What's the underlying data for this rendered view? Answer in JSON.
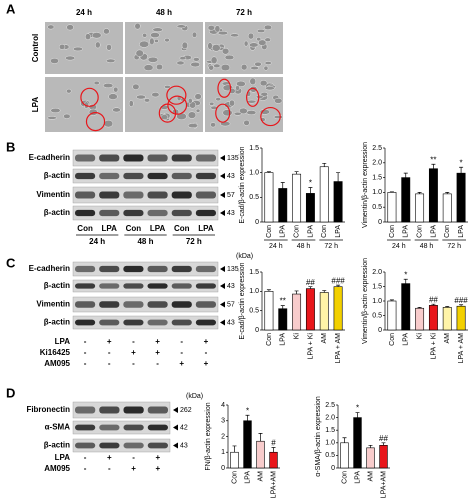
{
  "panel_a": {
    "label": "A",
    "columns": [
      "24 h",
      "48 h",
      "72 h"
    ],
    "rows": [
      "Control",
      "LPA"
    ]
  },
  "panel_b": {
    "label": "B",
    "blots": [
      {
        "name": "E-cadherin",
        "size": "135"
      },
      {
        "name": "β-actin",
        "size": "43"
      },
      {
        "name": "Vimentin",
        "size": "57"
      },
      {
        "name": "β-actin",
        "size": "43"
      }
    ],
    "lanes": [
      "Con",
      "LPA",
      "Con",
      "LPA",
      "Con",
      "LPA"
    ],
    "times": [
      "24 h",
      "48 h",
      "72 h"
    ]
  },
  "panel_c": {
    "label": "C",
    "unit": "(kDa)",
    "blots": [
      {
        "name": "E-cadherin",
        "size": "135"
      },
      {
        "name": "β-actin",
        "size": "43"
      },
      {
        "name": "Vimentin",
        "size": "57"
      },
      {
        "name": "β-actin",
        "size": "43"
      }
    ],
    "treatments": [
      {
        "name": "LPA",
        "signs": [
          "-",
          "+",
          "-",
          "+",
          "-",
          "+"
        ]
      },
      {
        "name": "Ki16425",
        "signs": [
          "-",
          "-",
          "+",
          "+",
          "-",
          "-"
        ]
      },
      {
        "name": "AM095",
        "signs": [
          "-",
          "-",
          "-",
          "-",
          "+",
          "+"
        ]
      }
    ]
  },
  "panel_d": {
    "label": "D",
    "unit": "(kDa)",
    "blots": [
      {
        "name": "Fibronectin",
        "size": "262"
      },
      {
        "name": "α-SMA",
        "size": "42"
      },
      {
        "name": "β-actin",
        "size": "43"
      }
    ],
    "treatments": [
      {
        "name": "LPA",
        "signs": [
          "-",
          "+",
          "-",
          "+"
        ]
      },
      {
        "name": "AM095",
        "signs": [
          "-",
          "-",
          "+",
          "+"
        ]
      }
    ]
  },
  "chart_data": [
    {
      "type": "bar",
      "y_label": "E-cad/β-actin expression",
      "categories": [
        "Con",
        "LPA",
        "Con",
        "LPA",
        "Con",
        "LPA"
      ],
      "groups": [
        "24 h",
        "48 h",
        "72 h"
      ],
      "values": [
        1.0,
        0.68,
        0.97,
        0.58,
        1.12,
        0.82
      ],
      "errors": [
        0.02,
        0.12,
        0.05,
        0.12,
        0.07,
        0.18
      ],
      "colors": [
        "#ffffff",
        "#000000",
        "#ffffff",
        "#000000",
        "#ffffff",
        "#000000"
      ],
      "annotations": [
        null,
        null,
        null,
        "*",
        null,
        null
      ],
      "ylim": [
        0,
        1.5
      ],
      "yticks": [
        0,
        0.5,
        {
          "value": 1,
          "label": "1.0"
        },
        1.5
      ]
    },
    {
      "type": "bar",
      "y_label": "Vimentin/β-actin expression",
      "categories": [
        "Con",
        "LPA",
        "Con",
        "LPA",
        "Con",
        "LPA"
      ],
      "groups": [
        "24 h",
        "48 h",
        "72 h"
      ],
      "values": [
        1.0,
        1.5,
        0.95,
        1.8,
        0.95,
        1.65
      ],
      "errors": [
        0.02,
        0.15,
        0.05,
        0.15,
        0.05,
        0.2
      ],
      "colors": [
        "#ffffff",
        "#000000",
        "#ffffff",
        "#000000",
        "#ffffff",
        "#000000"
      ],
      "annotations": [
        null,
        null,
        null,
        "**",
        null,
        "*"
      ],
      "ylim": [
        0,
        2.5
      ],
      "yticks": [
        0,
        0.5,
        {
          "value": 1,
          "label": "1.0"
        },
        1.5,
        {
          "value": 2,
          "label": "2.0"
        },
        2.5
      ]
    },
    {
      "type": "bar",
      "y_label": "E-cad/β-actin expression",
      "categories": [
        "Con",
        "LPA",
        "Ki",
        "LPA + Ki",
        "AM",
        "LPA + AM"
      ],
      "values": [
        1.0,
        0.55,
        0.93,
        1.07,
        0.97,
        1.12
      ],
      "errors": [
        0.04,
        0.08,
        0.08,
        0.05,
        0.05,
        0.04
      ],
      "colors": [
        "#ffffff",
        "#000000",
        "#f8cccc",
        "#e8161b",
        "#fff4a8",
        "#f2d000"
      ],
      "annotations": [
        null,
        "**",
        null,
        "##",
        null,
        "###"
      ],
      "ylim": [
        0,
        1.5
      ],
      "yticks": [
        0,
        0.5,
        {
          "value": 1,
          "label": "1.0"
        },
        1.5
      ]
    },
    {
      "type": "bar",
      "y_label": "Vimentin/β-actin expression",
      "categories": [
        "Con",
        "LPA",
        "Ki",
        "LPA + Ki",
        "AM",
        "LPA + AM"
      ],
      "values": [
        1.0,
        1.6,
        0.75,
        0.85,
        0.78,
        0.82
      ],
      "errors": [
        0.04,
        0.15,
        0.03,
        0.04,
        0.03,
        0.05
      ],
      "colors": [
        "#ffffff",
        "#000000",
        "#f8cccc",
        "#e8161b",
        "#fff4a8",
        "#f2d000"
      ],
      "annotations": [
        null,
        "*",
        null,
        "##",
        null,
        "###"
      ],
      "ylim": [
        0,
        2
      ],
      "yticks": [
        0,
        0.5,
        {
          "value": 1,
          "label": "1.0"
        },
        1.5,
        {
          "value": 2,
          "label": "2.0"
        }
      ]
    },
    {
      "type": "bar",
      "y_label": "FN/β-actin expression",
      "categories": [
        "Con",
        "LPA",
        "AM",
        "LPA+AM"
      ],
      "values": [
        1.0,
        3.0,
        1.7,
        1.0
      ],
      "errors": [
        0.4,
        0.35,
        0.5,
        0.3
      ],
      "colors": [
        "#ffffff",
        "#000000",
        "#f8cccc",
        "#e8161b"
      ],
      "annotations": [
        null,
        "*",
        null,
        "#"
      ],
      "ylim": [
        0,
        4
      ],
      "yticks": [
        0,
        1,
        2,
        3,
        4
      ]
    },
    {
      "type": "bar",
      "y_label": "α-SMA/β-actin expression",
      "categories": [
        "Con",
        "LPA",
        "AM",
        "LPA+AM"
      ],
      "values": [
        1.0,
        2.0,
        0.8,
        0.9
      ],
      "errors": [
        0.2,
        0.2,
        0.1,
        0.1
      ],
      "colors": [
        "#ffffff",
        "#000000",
        "#f8cccc",
        "#e8161b"
      ],
      "annotations": [
        null,
        "*",
        null,
        "##"
      ],
      "ylim": [
        0,
        2.5
      ],
      "yticks": [
        0,
        0.5,
        {
          "value": 1,
          "label": "1.0"
        },
        1.5,
        {
          "value": 2,
          "label": "2.0"
        },
        2.5
      ]
    }
  ]
}
